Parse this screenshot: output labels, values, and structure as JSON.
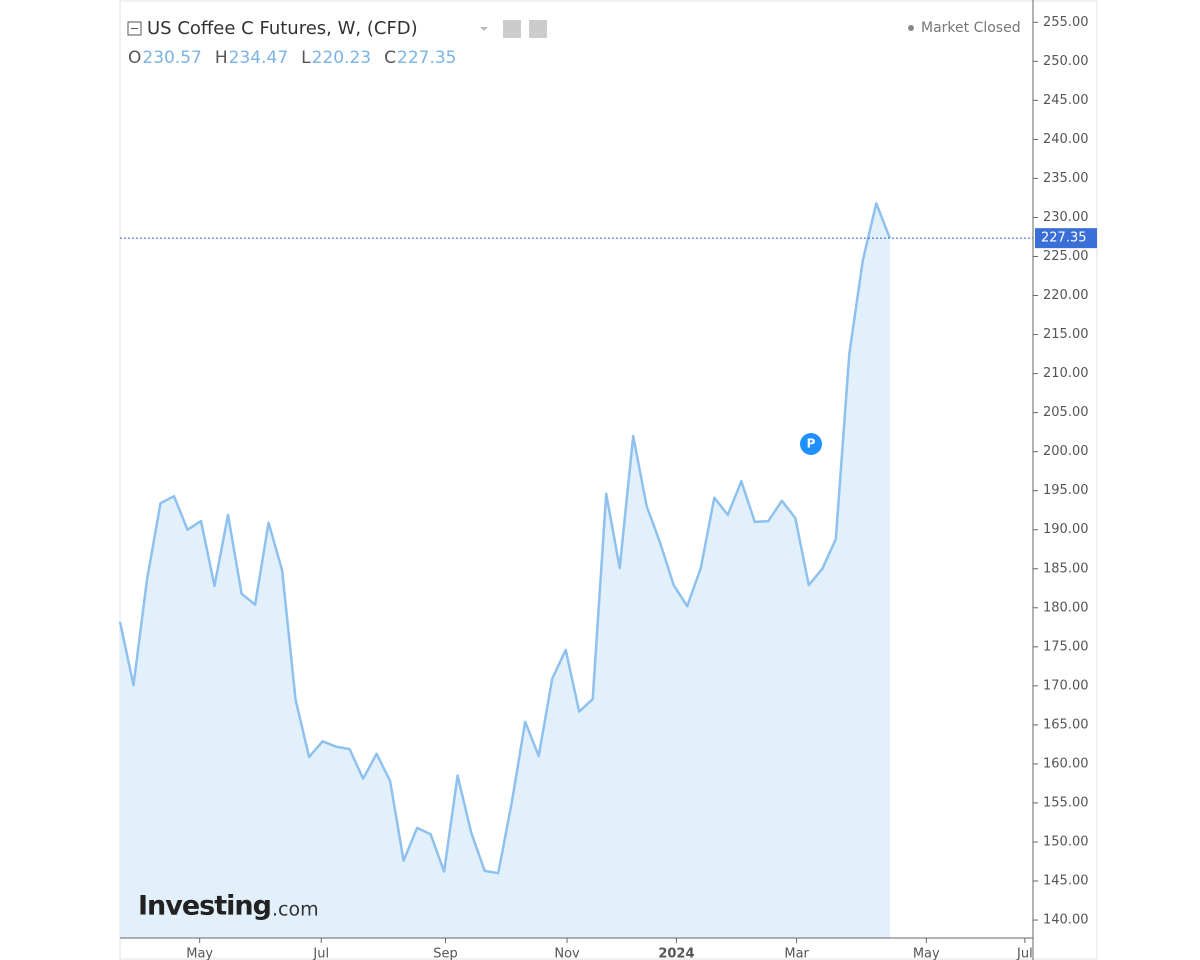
{
  "chart_data": {
    "type": "area",
    "title": "US Coffee C Futures, W, (CFD)",
    "status": "Market Closed",
    "ohlc": [
      {
        "label": "O",
        "value": 230.57
      },
      {
        "label": "H",
        "value": 234.47
      },
      {
        "label": "L",
        "value": 220.23
      },
      {
        "label": "C",
        "value": 227.35
      }
    ],
    "marker": "P",
    "watermark": {
      "brand": "Investing",
      "suffix": ".com"
    },
    "x": [
      0,
      1,
      2,
      3,
      4,
      5,
      6,
      7,
      8,
      9,
      10,
      11,
      12,
      13,
      14,
      15,
      16,
      17,
      18,
      19,
      20,
      21,
      22,
      23,
      24,
      25,
      26,
      27,
      28,
      29,
      30,
      31,
      32,
      33,
      34,
      35,
      36,
      37,
      38,
      39,
      40,
      41,
      42,
      43,
      44,
      45,
      46,
      47,
      48,
      49,
      50,
      51,
      52,
      53,
      54,
      55,
      56,
      57
    ],
    "series": [
      {
        "color": "#8ec1ee",
        "fill": "#e2f0fb",
        "values": [
          178.2,
          170.1,
          183.6,
          193.4,
          194.3,
          190.0,
          191.1,
          182.8,
          191.9,
          181.8,
          180.4,
          190.9,
          184.8,
          168.2,
          160.9,
          162.9,
          162.2,
          161.9,
          158.1,
          161.3,
          157.8,
          147.6,
          151.8,
          151.0,
          146.2,
          158.5,
          151.2,
          146.3,
          146.0,
          155.0,
          165.4,
          161.0,
          170.9,
          174.6,
          166.7,
          168.3,
          194.6,
          185.1,
          202.0,
          193.0,
          188.3,
          182.9,
          180.2,
          185.1,
          194.1,
          191.9,
          196.2,
          191.0,
          191.1,
          193.7,
          191.5,
          182.9,
          185.0,
          188.8,
          212.5,
          224.5,
          231.8,
          227.35
        ]
      }
    ],
    "xlim": [
      0,
      67.6
    ],
    "xticks": [
      {
        "value": 5.9,
        "label": "May"
      },
      {
        "value": 14.9,
        "label": "Jul"
      },
      {
        "value": 24.1,
        "label": "Sep"
      },
      {
        "value": 33.1,
        "label": "Nov"
      },
      {
        "value": 41.2,
        "label": "2024"
      },
      {
        "value": 50.1,
        "label": "Mar"
      },
      {
        "value": 59.7,
        "label": "May"
      },
      {
        "value": 67.0,
        "label": "Jul"
      }
    ],
    "ylim": [
      137.7,
      257.6
    ],
    "yticks": [
      {
        "value": 140,
        "label": "140.00"
      },
      {
        "value": 145,
        "label": "145.00"
      },
      {
        "value": 150,
        "label": "150.00"
      },
      {
        "value": 155,
        "label": "155.00"
      },
      {
        "value": 160,
        "label": "160.00"
      },
      {
        "value": 165,
        "label": "165.00"
      },
      {
        "value": 170,
        "label": "170.00"
      },
      {
        "value": 175,
        "label": "175.00"
      },
      {
        "value": 180,
        "label": "180.00"
      },
      {
        "value": 185,
        "label": "185.00"
      },
      {
        "value": 190,
        "label": "190.00"
      },
      {
        "value": 195,
        "label": "195.00"
      },
      {
        "value": 200,
        "label": "200.00"
      },
      {
        "value": 205,
        "label": "205.00"
      },
      {
        "value": 210,
        "label": "210.00"
      },
      {
        "value": 215,
        "label": "215.00"
      },
      {
        "value": 220,
        "label": "220.00"
      },
      {
        "value": 225,
        "label": "225.00"
      },
      {
        "value": 230,
        "label": "230.00"
      },
      {
        "value": 235,
        "label": "235.00"
      },
      {
        "value": 240,
        "label": "240.00"
      },
      {
        "value": 245,
        "label": "245.00"
      },
      {
        "value": 250,
        "label": "250.00"
      },
      {
        "value": 255,
        "label": "255.00"
      }
    ]
  }
}
